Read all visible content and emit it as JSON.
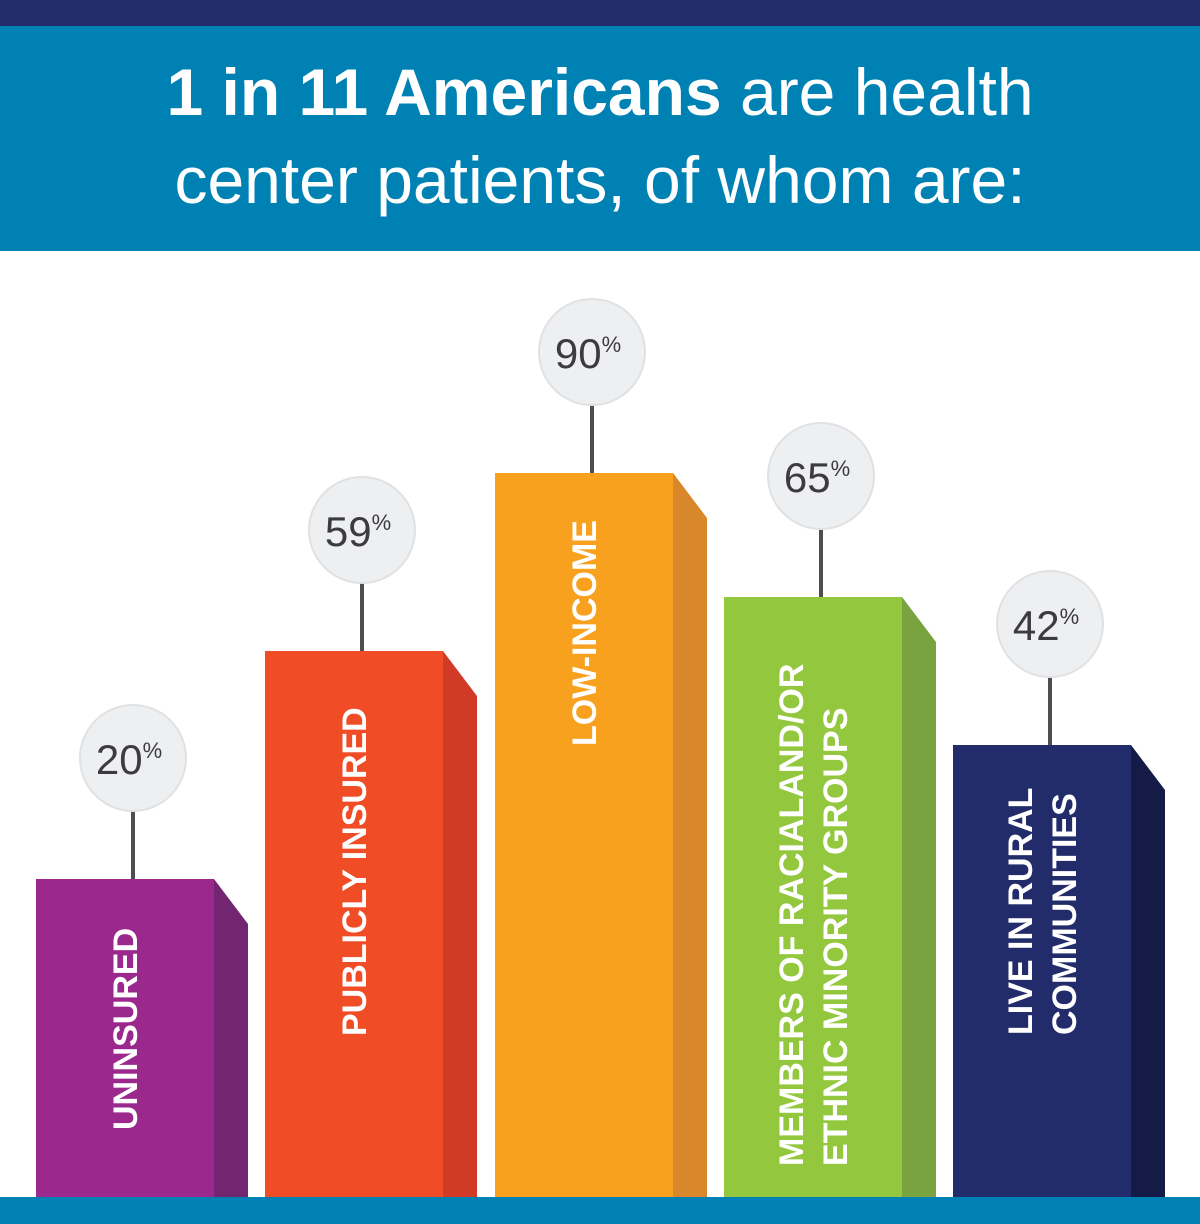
{
  "title": {
    "bold": "1 in 11 Americans",
    "rest_line1": " are health",
    "line2": "center patients, of whom are:"
  },
  "colors": {
    "top_band": "#232c6a",
    "banner": "#0081b4",
    "bubble": "#eeeff0",
    "stick": "#4d4d52"
  },
  "chart_data": {
    "type": "bar",
    "title": "1 in 11 Americans are health center patients, of whom are:",
    "categories": [
      [
        "UNINSURED"
      ],
      [
        "PUBLICLY INSURED"
      ],
      [
        "LOW-INCOME"
      ],
      [
        "MEMBERS OF RACIALAND/OR",
        "ETHNIC MINORITY GROUPS"
      ],
      [
        "LIVE IN RURAL",
        "COMMUNITIES"
      ]
    ],
    "values": [
      20,
      59,
      90,
      65,
      42
    ],
    "value_labels": [
      "20",
      "59",
      "90",
      "65",
      "42"
    ],
    "unit": "%",
    "colors": [
      {
        "front": "#9b288d",
        "side": "#722672"
      },
      {
        "front": "#f04c25",
        "side": "#d13a26"
      },
      {
        "front": "#f7a11f",
        "side": "#d8882a"
      },
      {
        "front": "#93c83e",
        "side": "#78a33f"
      },
      {
        "front": "#232c6a",
        "side": "#141b47"
      }
    ]
  }
}
